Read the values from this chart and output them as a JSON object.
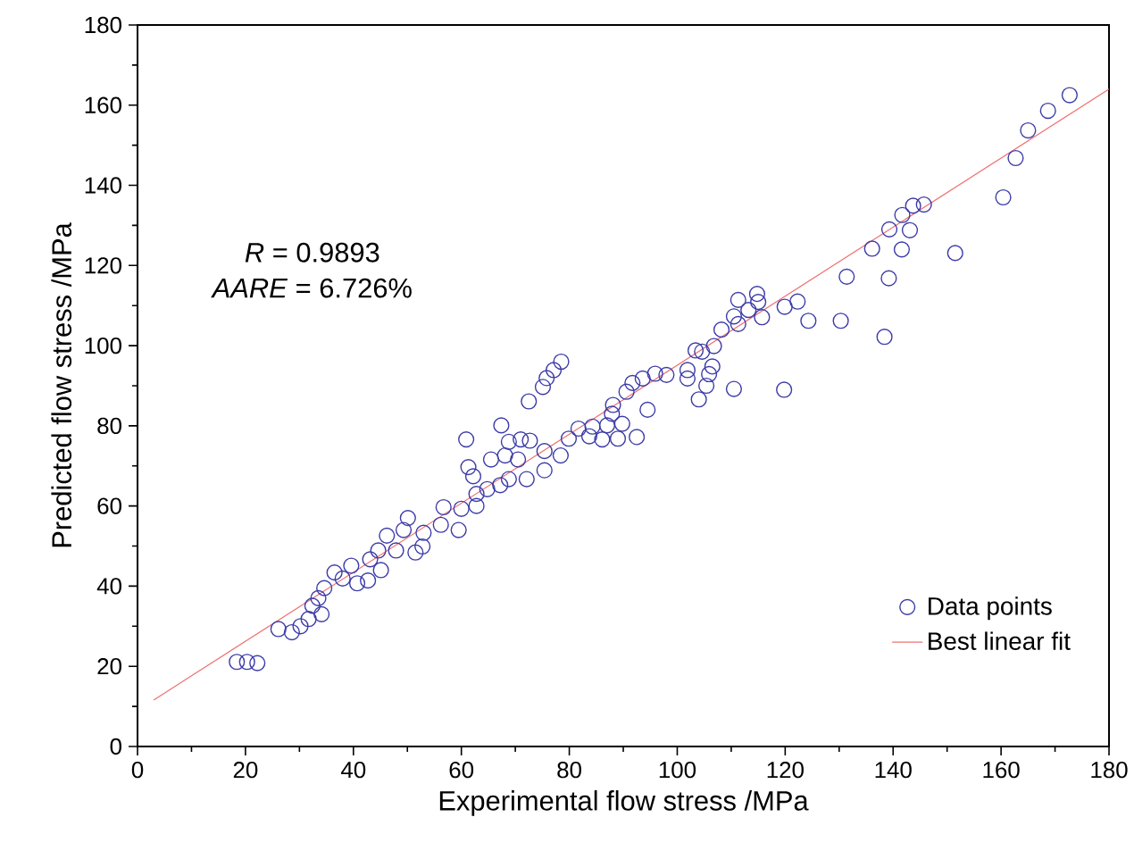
{
  "chart_data": {
    "type": "scatter",
    "xlabel": "Experimental flow stress /MPa",
    "ylabel": "Predicted flow stress /MPa",
    "xlim": [
      0,
      180
    ],
    "ylim": [
      0,
      180
    ],
    "xticks": [
      0,
      20,
      40,
      60,
      80,
      100,
      120,
      140,
      160,
      180
    ],
    "yticks": [
      0,
      20,
      40,
      60,
      80,
      100,
      120,
      140,
      160,
      180
    ],
    "grid": false,
    "legend": "bottom right",
    "annotations": [
      "*R* = 0.9893",
      "*AARE* = 6.726%"
    ],
    "series": [
      {
        "name": "Data points",
        "marker": "circle",
        "color": "#3c3ca8",
        "x": [
          172.7,
          168.7,
          165,
          162.7,
          160.4,
          151.5,
          145.7,
          143.7,
          141.7,
          139.3,
          143.1,
          141.6,
          136.1,
          139.2,
          138.4,
          131.4,
          130.3,
          124.3,
          122.3,
          119.9,
          119.8,
          115.7,
          114.8,
          115,
          113.2,
          111.3,
          110.5,
          111.3,
          108.2,
          106.8,
          104.6,
          103.4,
          106.5,
          105.9,
          105.4,
          101.9,
          110.5,
          104,
          101.9,
          98,
          95.9,
          93.6,
          91.7,
          94.5,
          92.5,
          90.6,
          88.1,
          87.9,
          89.8,
          87,
          89,
          86.1,
          83.7,
          84.3,
          81.7,
          79.9,
          78.4,
          78.5,
          77.1,
          75.8,
          75.1,
          72.5,
          67.4,
          60.9,
          75.4,
          72.7,
          71,
          68.8,
          65.5,
          68.1,
          70.5,
          61.3,
          62.2,
          75.4,
          72.1,
          68.8,
          67.2,
          64.8,
          62.8,
          18.4,
          20.3,
          22.2,
          26.1,
          28.6,
          30.2,
          31.7,
          34.1,
          32.4,
          33.5,
          34.6,
          36.5,
          38,
          39.6,
          40.7,
          42.7,
          43.1,
          45.1,
          44.6,
          46.2,
          47.9,
          50.1,
          49.3,
          51.5,
          52.8,
          53,
          56.2,
          56.7,
          60,
          59.5,
          62.8
        ],
        "values": [
          162.5,
          158.6,
          153.7,
          146.8,
          137,
          123.1,
          135.2,
          134.9,
          132.6,
          129,
          128.8,
          124,
          124.2,
          116.8,
          102.2,
          117.2,
          106.2,
          106.2,
          111,
          109.7,
          89,
          107.1,
          112.9,
          110.9,
          108.9,
          111.4,
          107.3,
          105.4,
          104,
          99.9,
          98.5,
          98.8,
          94.8,
          92.9,
          90,
          91.8,
          89.2,
          86.6,
          93.9,
          92.7,
          93,
          91.8,
          90.7,
          84,
          77.2,
          88.5,
          85.2,
          83,
          80.5,
          80.1,
          76.8,
          76.6,
          77.4,
          79.8,
          79.3,
          76.8,
          72.6,
          96,
          93.9,
          91.9,
          89.7,
          86.1,
          80.1,
          76.6,
          73.7,
          76.3,
          76.6,
          76,
          71.6,
          72.6,
          71.6,
          69.7,
          67.4,
          68.9,
          66.7,
          66.7,
          65.2,
          64.2,
          63,
          21.1,
          21.1,
          20.8,
          29.3,
          28.5,
          30,
          31.8,
          33,
          35.1,
          37,
          39.5,
          43.4,
          41.9,
          45.1,
          40.7,
          41.4,
          46.7,
          44,
          48.9,
          52.6,
          48.9,
          57,
          54,
          48.4,
          49.9,
          53.3,
          55.3,
          59.7,
          59.3,
          54,
          60
        ]
      },
      {
        "name": "Best linear fit",
        "type": "line",
        "color": "#f07070",
        "x": [
          3,
          180
        ],
        "values": [
          11.6,
          164
        ]
      }
    ]
  }
}
